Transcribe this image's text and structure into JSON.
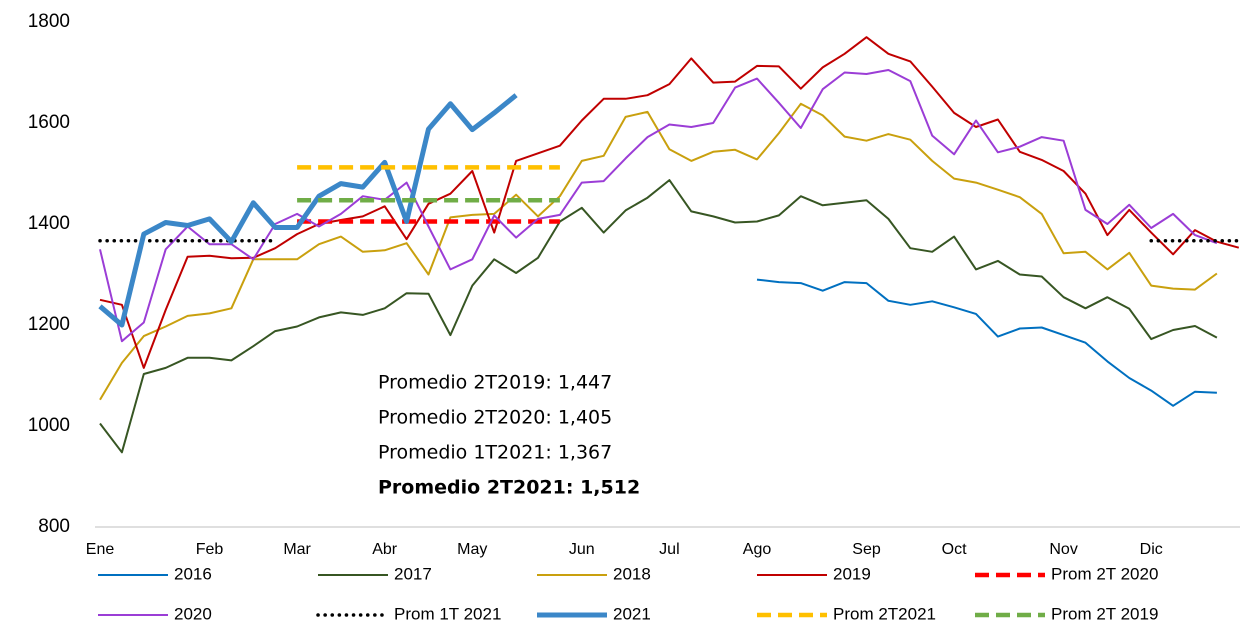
{
  "chart_data": {
    "type": "line",
    "categories": [
      "Ene",
      null,
      null,
      null,
      null,
      "Feb",
      null,
      null,
      null,
      "Mar",
      null,
      null,
      null,
      "Abr",
      null,
      null,
      null,
      "May",
      null,
      null,
      null,
      null,
      "Jun",
      null,
      null,
      null,
      "Jul",
      null,
      null,
      null,
      "Ago",
      null,
      null,
      null,
      null,
      "Sep",
      null,
      null,
      null,
      "Oct",
      null,
      null,
      null,
      null,
      "Nov",
      null,
      null,
      null,
      "Dic",
      null,
      null,
      null,
      null
    ],
    "ylim": [
      800,
      1800
    ],
    "yticks": [
      800,
      1000,
      1200,
      1400,
      1600,
      1800
    ],
    "series": [
      {
        "name": "2016",
        "color": "#0070c0",
        "style": "solid",
        "values": [
          null,
          null,
          null,
          null,
          null,
          null,
          null,
          null,
          null,
          null,
          null,
          null,
          null,
          null,
          null,
          null,
          null,
          null,
          null,
          null,
          null,
          null,
          null,
          null,
          null,
          null,
          null,
          null,
          null,
          null,
          1290,
          1285,
          1283,
          1268,
          1285,
          1283,
          1248,
          1240,
          1247,
          1235,
          1222,
          1177,
          1193,
          1195,
          1180,
          1165,
          1128,
          1095,
          1070,
          1040,
          1068,
          1066,
          null
        ]
      },
      {
        "name": "2017",
        "color": "#375623",
        "style": "solid",
        "values": [
          1005,
          948,
          1103,
          1115,
          1135,
          1135,
          1130,
          1158,
          1188,
          1197,
          1215,
          1225,
          1220,
          1233,
          1263,
          1262,
          1180,
          1278,
          1330,
          1303,
          1333,
          1405,
          1432,
          1383,
          1427,
          1452,
          1487,
          1425,
          1415,
          1403,
          1405,
          1417,
          1455,
          1437,
          1442,
          1447,
          1410,
          1352,
          1345,
          1375,
          1310,
          1327,
          1300,
          1296,
          1255,
          1233,
          1255,
          1232,
          1172,
          1190,
          1198,
          1175,
          null
        ]
      },
      {
        "name": "2018",
        "color": "#c9a00e",
        "style": "solid",
        "values": [
          1052,
          1125,
          1178,
          1197,
          1218,
          1223,
          1233,
          1330,
          1330,
          1330,
          1360,
          1375,
          1345,
          1348,
          1362,
          1300,
          1413,
          1418,
          1420,
          1458,
          1415,
          1455,
          1525,
          1535,
          1612,
          1622,
          1548,
          1525,
          1543,
          1547,
          1528,
          1580,
          1638,
          1615,
          1573,
          1565,
          1578,
          1567,
          1525,
          1490,
          1482,
          1468,
          1453,
          1420,
          1342,
          1345,
          1310,
          1343,
          1278,
          1272,
          1270,
          1302,
          null
        ]
      },
      {
        "name": "2019",
        "color": "#c00000",
        "style": "solid",
        "values": [
          1250,
          1240,
          1115,
          1230,
          1335,
          1337,
          1332,
          1333,
          1352,
          1380,
          1400,
          1408,
          1415,
          1435,
          1370,
          1440,
          1460,
          1505,
          1383,
          1525,
          1540,
          1555,
          1605,
          1648,
          1648,
          1655,
          1677,
          1728,
          1680,
          1682,
          1713,
          1712,
          1668,
          1710,
          1737,
          1770,
          1737,
          1722,
          1672,
          1620,
          1592,
          1607,
          1543,
          1527,
          1505,
          1460,
          1378,
          1428,
          1383,
          1340,
          1388,
          1365,
          1353
        ]
      },
      {
        "name": "Prom 2T 2020",
        "color": "#ff0000",
        "style": "dashed",
        "values": [
          null,
          null,
          null,
          null,
          null,
          null,
          null,
          null,
          null,
          1405,
          1405,
          1405,
          1405,
          1405,
          1405,
          1405,
          1405,
          1405,
          1405,
          1405,
          1405,
          1405,
          null,
          null,
          null,
          null,
          null,
          null,
          null,
          null,
          null,
          null,
          null,
          null,
          null,
          null,
          null,
          null,
          null,
          null,
          null,
          null,
          null,
          null,
          null,
          null,
          null,
          null,
          null,
          null,
          null,
          null,
          null
        ]
      },
      {
        "name": "2020",
        "color": "#9b3dd6",
        "style": "solid",
        "values": [
          1350,
          1168,
          1205,
          1350,
          1395,
          1360,
          1360,
          1330,
          1400,
          1420,
          1395,
          1420,
          1455,
          1448,
          1482,
          1395,
          1310,
          1330,
          1417,
          1373,
          1410,
          1418,
          1482,
          1485,
          1530,
          1572,
          1597,
          1592,
          1600,
          1670,
          1688,
          1640,
          1590,
          1667,
          1700,
          1697,
          1705,
          1683,
          1575,
          1538,
          1605,
          1542,
          1553,
          1572,
          1565,
          1428,
          1400,
          1438,
          1392,
          1420,
          1378,
          1362,
          null
        ]
      },
      {
        "name": "Prom 1T 2021",
        "color": "#000000",
        "style": "dotted",
        "values": [
          1367,
          1367,
          1367,
          1367,
          1367,
          1367,
          1367,
          1367,
          1367,
          null,
          null,
          null,
          null,
          null,
          null,
          null,
          null,
          null,
          null,
          null,
          null,
          null,
          null,
          null,
          null,
          null,
          null,
          null,
          null,
          null,
          null,
          null,
          null,
          null,
          null,
          null,
          null,
          null,
          null,
          null,
          null,
          null,
          null,
          null,
          null,
          null,
          null,
          null,
          1367,
          1367,
          1367,
          1367,
          1367
        ]
      },
      {
        "name": "2021",
        "color": "#3b87c8",
        "style": "thick",
        "values": [
          1237,
          1200,
          1380,
          1403,
          1397,
          1410,
          1365,
          1442,
          1393,
          1393,
          1455,
          1480,
          1473,
          1522,
          1405,
          1588,
          1638,
          1587,
          1620,
          1655,
          null,
          null,
          null,
          null,
          null,
          null,
          null,
          null,
          null,
          null,
          null,
          null,
          null,
          null,
          null,
          null,
          null,
          null,
          null,
          null,
          null,
          null,
          null,
          null,
          null,
          null,
          null,
          null,
          null,
          null,
          null,
          null,
          null
        ]
      },
      {
        "name": "Prom 2T2021",
        "color": "#ffc000",
        "style": "dashed",
        "values": [
          null,
          null,
          null,
          null,
          null,
          null,
          null,
          null,
          null,
          1512,
          1512,
          1512,
          1512,
          1512,
          1512,
          1512,
          1512,
          1512,
          1512,
          1512,
          1512,
          1512,
          null,
          null,
          null,
          null,
          null,
          null,
          null,
          null,
          null,
          null,
          null,
          null,
          null,
          null,
          null,
          null,
          null,
          null,
          null,
          null,
          null,
          null,
          null,
          null,
          null,
          null,
          null,
          null,
          null,
          null,
          null
        ]
      },
      {
        "name": "Prom 2T 2019",
        "color": "#70ad47",
        "style": "dashed",
        "values": [
          null,
          null,
          null,
          null,
          null,
          null,
          null,
          null,
          null,
          1447,
          1447,
          1447,
          1447,
          1447,
          1447,
          1447,
          1447,
          1447,
          1447,
          1447,
          1447,
          1447,
          null,
          null,
          null,
          null,
          null,
          null,
          null,
          null,
          null,
          null,
          null,
          null,
          null,
          null,
          null,
          null,
          null,
          null,
          null,
          null,
          null,
          null,
          null,
          null,
          null,
          null,
          null,
          null,
          null,
          null,
          null
        ]
      }
    ],
    "annotations": [
      {
        "text": "Promedio 2T2019: 1,447",
        "color": "#e00000",
        "bold": false
      },
      {
        "text": "Promedio 2T2020: 1,405",
        "color": "#70ad47",
        "bold": false
      },
      {
        "text": "Promedio 1T2021: 1,367",
        "color": "#000000",
        "bold": false
      },
      {
        "text": "Promedio 2T2021: 1,512",
        "color": "#ffc000",
        "bold": true
      }
    ]
  }
}
